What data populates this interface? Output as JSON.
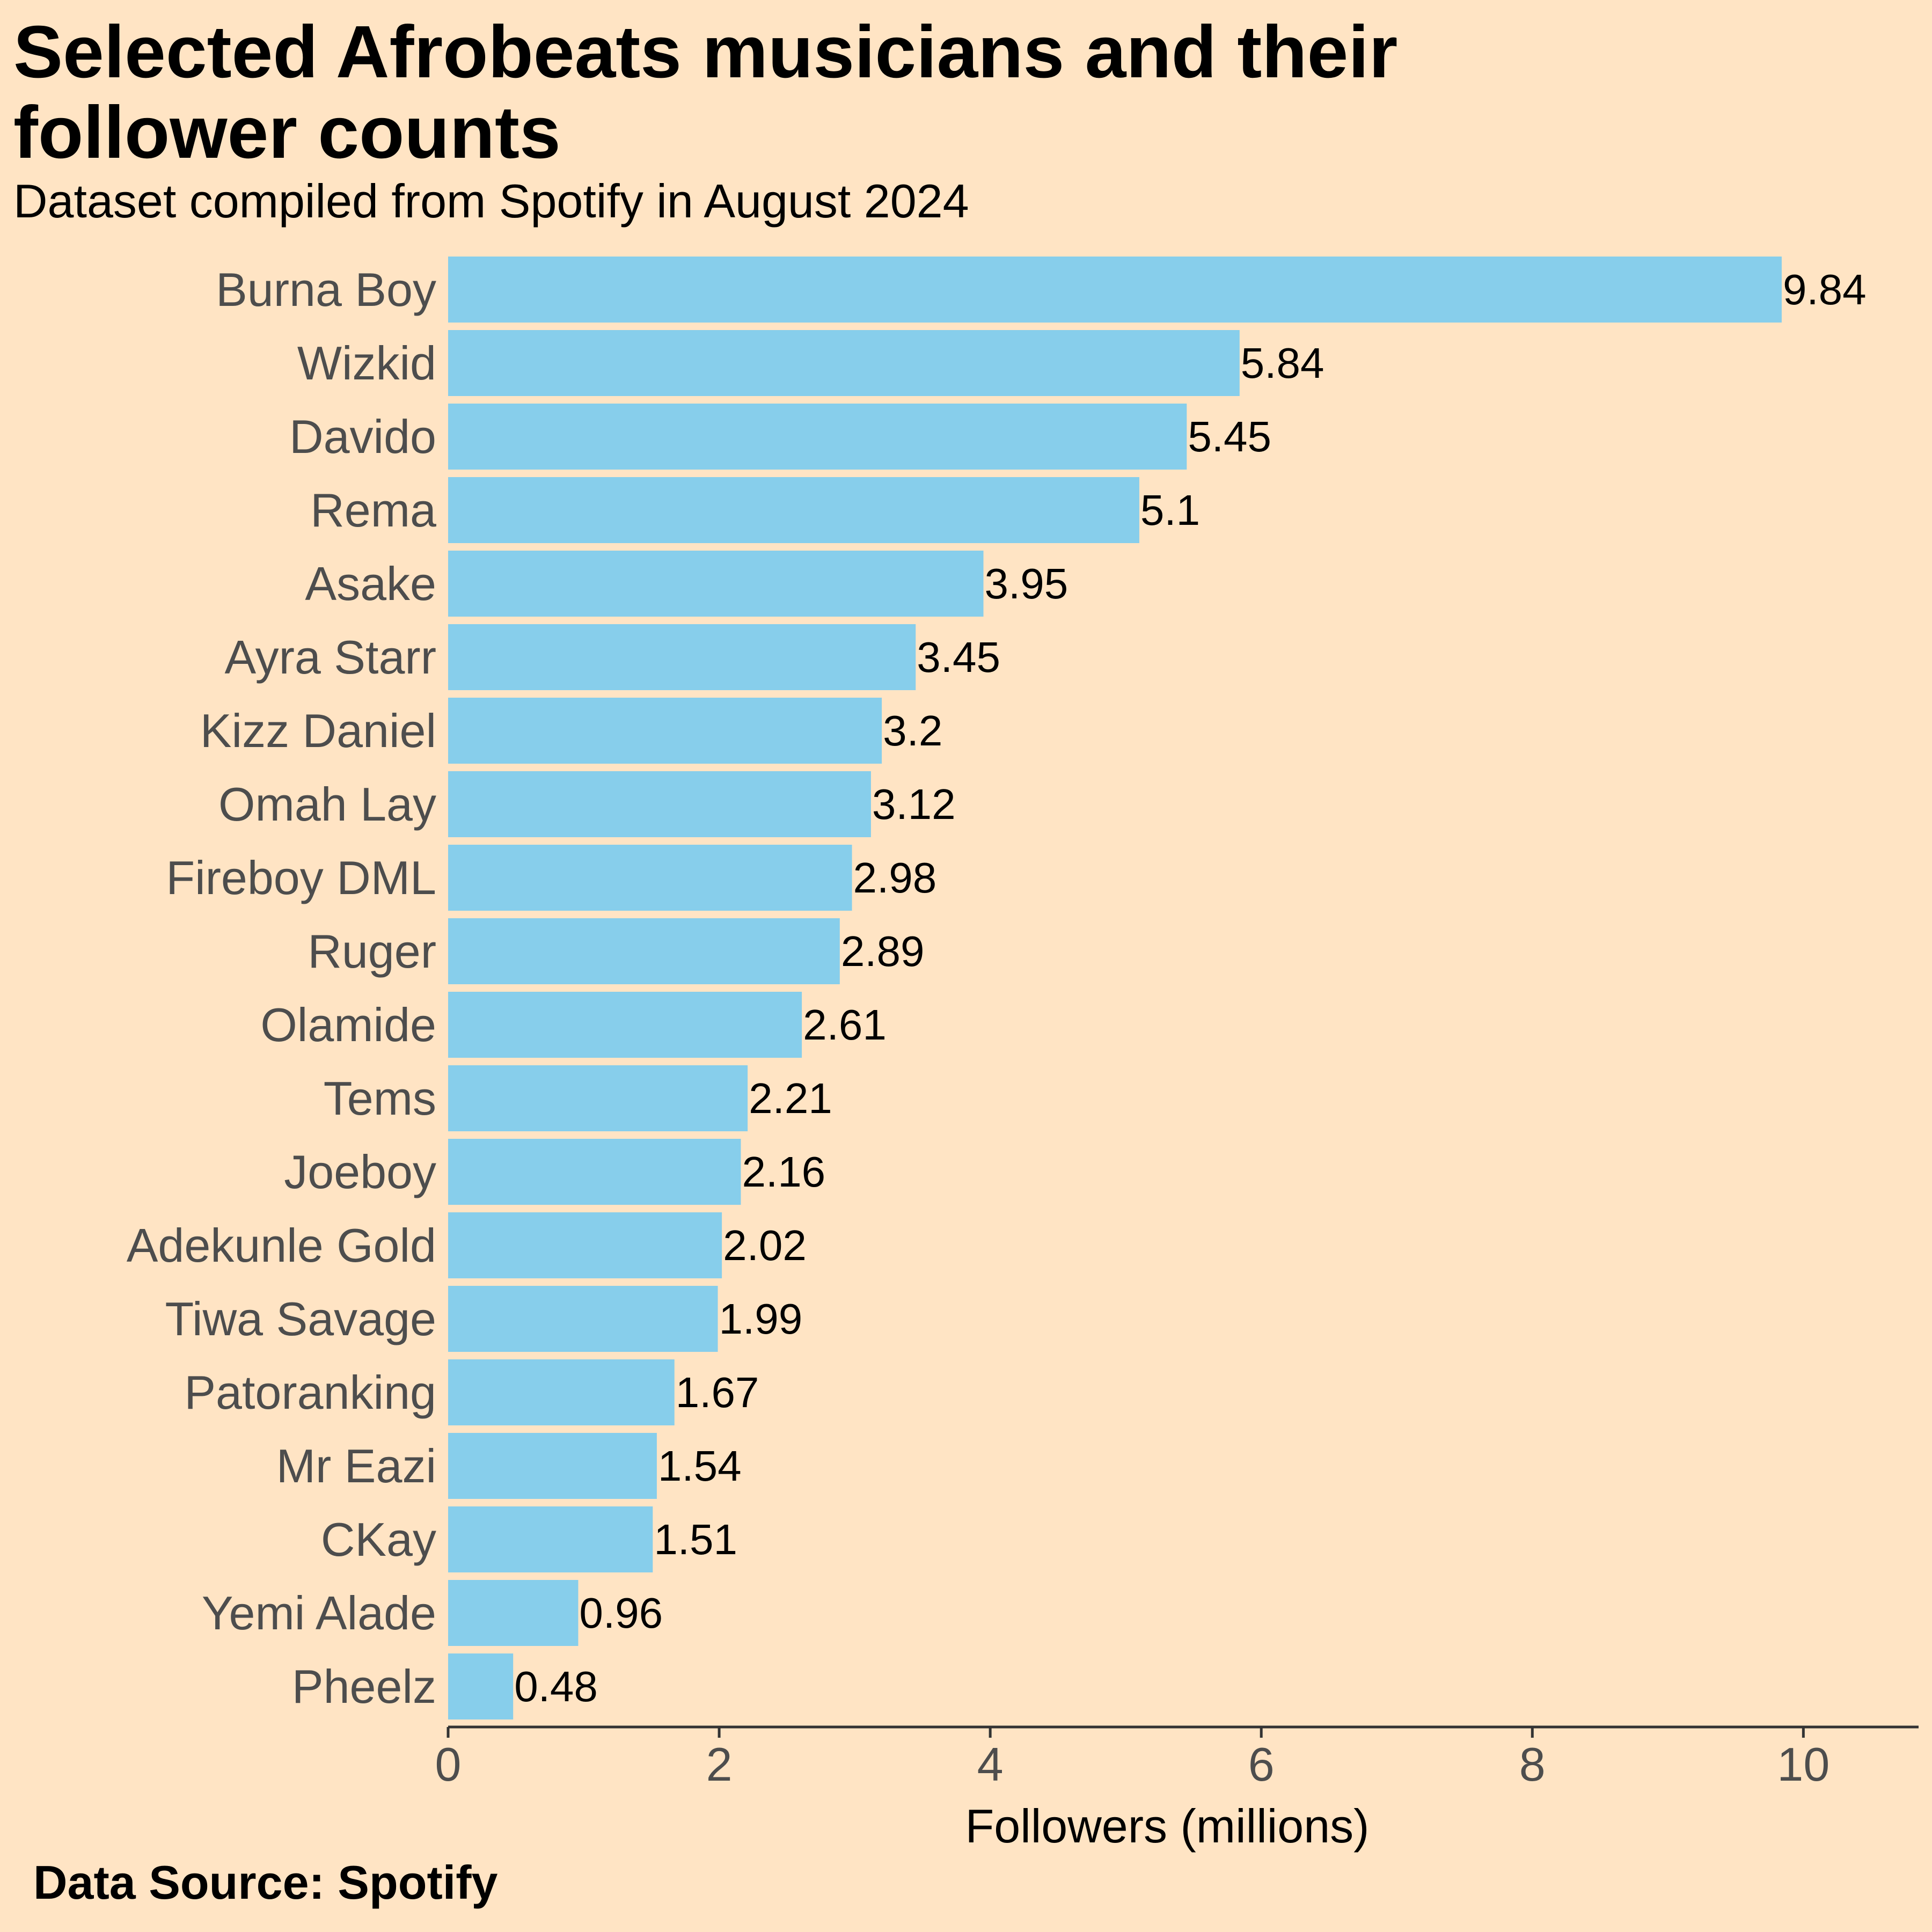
{
  "chart_data": {
    "type": "bar",
    "orientation": "horizontal",
    "title": "Selected Afrobeats musicians and their follower counts",
    "subtitle": "Dataset compiled from Spotify in August 2024",
    "xlabel": "Followers (millions)",
    "ylabel": "",
    "xlim": [
      0,
      10.85
    ],
    "xticks": [
      0,
      2,
      4,
      6,
      8,
      10
    ],
    "grid": false,
    "legend": "none",
    "categories": [
      "Burna Boy",
      "Wizkid",
      "Davido",
      "Rema",
      "Asake",
      "Ayra Starr",
      "Kizz Daniel",
      "Omah Lay",
      "Fireboy DML",
      "Ruger",
      "Olamide",
      "Tems",
      "Joeboy",
      "Adekunle Gold",
      "Tiwa Savage",
      "Patoranking",
      "Mr Eazi",
      "CKay",
      "Yemi Alade",
      "Pheelz"
    ],
    "values": [
      9.84,
      5.84,
      5.45,
      5.1,
      3.95,
      3.45,
      3.2,
      3.12,
      2.98,
      2.89,
      2.61,
      2.21,
      2.16,
      2.02,
      1.99,
      1.67,
      1.54,
      1.51,
      0.96,
      0.48
    ],
    "value_labels": [
      "9.84",
      "5.84",
      "5.45",
      "5.1",
      "3.95",
      "3.45",
      "3.2",
      "3.12",
      "2.98",
      "2.89",
      "2.61",
      "2.21",
      "2.16",
      "2.02",
      "1.99",
      "1.67",
      "1.54",
      "1.51",
      "0.96",
      "0.48"
    ],
    "colors": {
      "bar": "#87ceeb",
      "background": "#ffe4c4",
      "axis": "#333333",
      "tick_label": "#4d4d4d",
      "value_label": "#000000"
    },
    "source": "Data Source: Spotify"
  }
}
